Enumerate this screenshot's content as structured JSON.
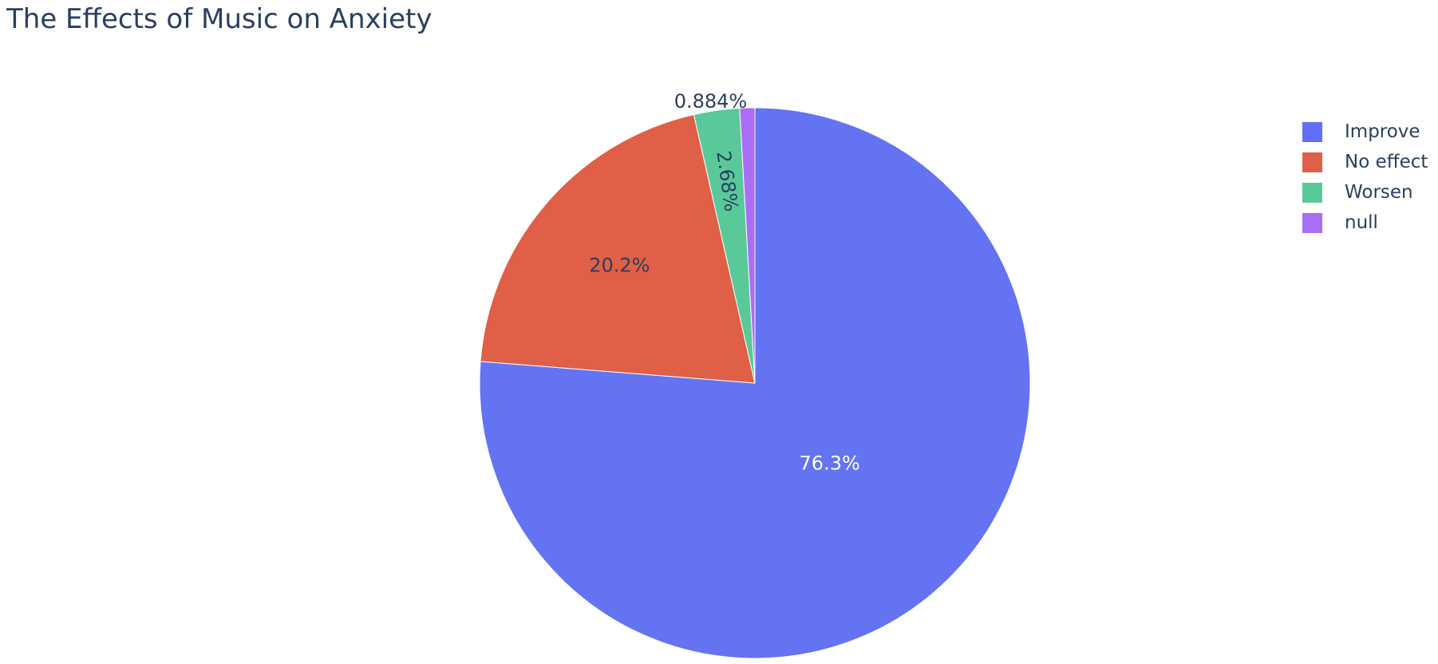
{
  "chart_data": {
    "type": "pie",
    "title": "The Effects of Music on Anxiety",
    "categories": [
      "Improve",
      "No effect",
      "Worsen",
      "null"
    ],
    "values": [
      76.3,
      20.2,
      2.68,
      0.884
    ],
    "labels": [
      "76.3%",
      "20.2%",
      "2.68%",
      "0.884%"
    ],
    "colors": [
      "#636efa",
      "#ef553b",
      "#00cc96",
      "#ab63fa"
    ],
    "direction": "clockwise",
    "start": "top",
    "legend": {
      "position": "right",
      "items": [
        {
          "label": "Improve",
          "color": "#636efa"
        },
        {
          "label": "No effect",
          "color": "#ef553b"
        },
        {
          "label": "Worsen",
          "color": "#00cc96"
        },
        {
          "label": "null",
          "color": "#ab63fa"
        }
      ]
    }
  }
}
